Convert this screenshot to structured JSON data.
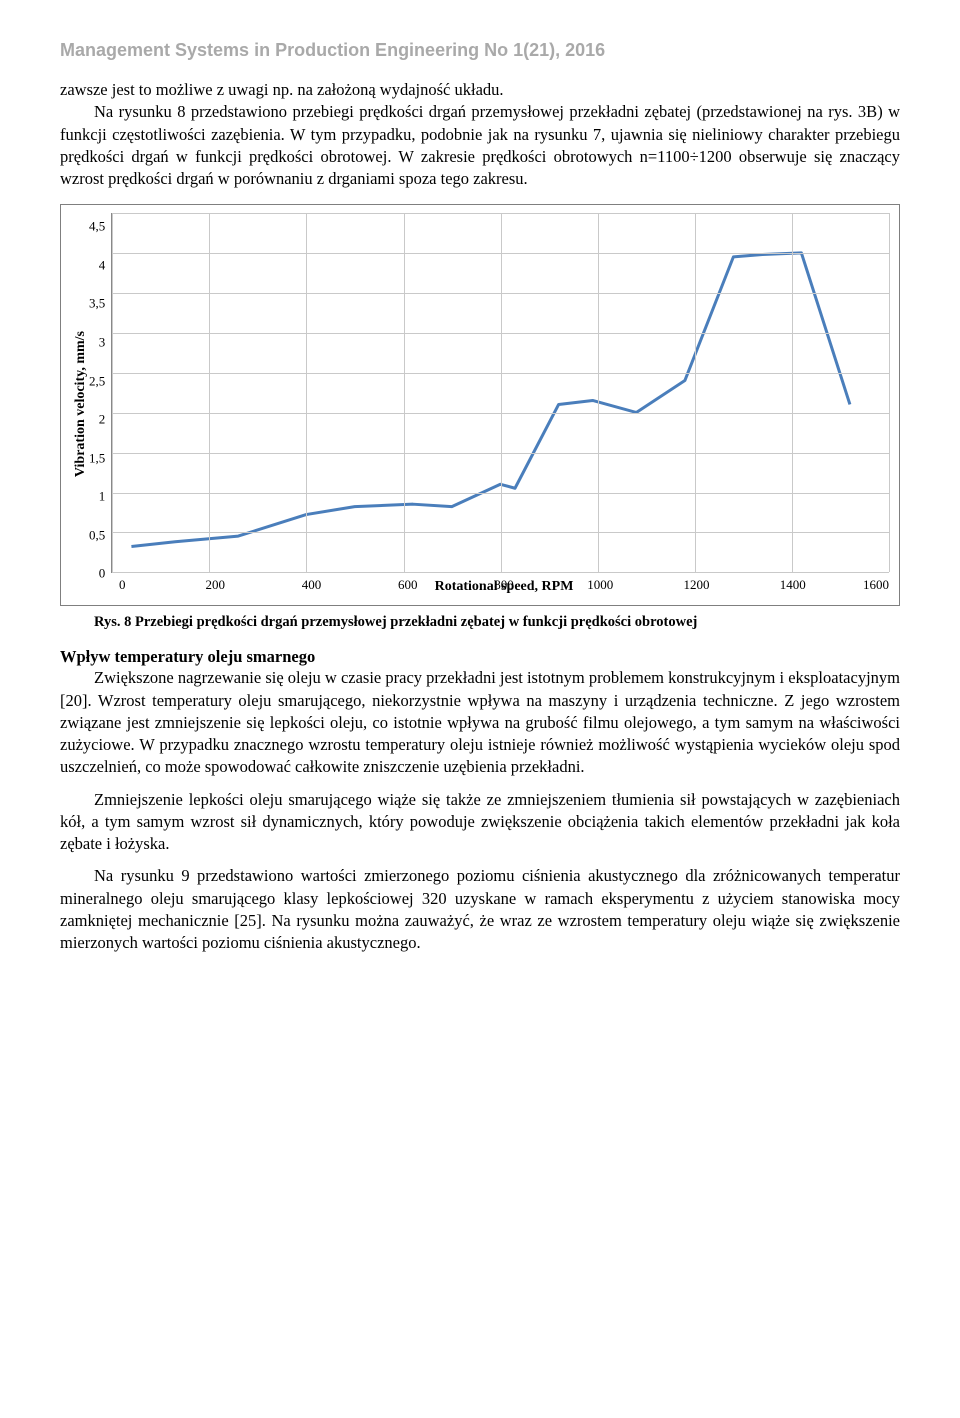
{
  "page": {
    "header": "Management Systems in Production Engineering No 1(21), 2016",
    "para1a": "zawsze jest to możliwe z uwagi np. na założoną wydajność układu.",
    "para1b": "Na rysunku 8 przedstawiono przebiegi prędkości drgań przemysłowej przekładni zębatej (przedstawionej na rys. 3B) w funkcji częstotliwości zazębienia. W tym przypadku, podobnie jak na rysunku 7, ujawnia się nieliniowy charakter przebiegu prędkości drgań w funkcji prędkości obrotowej. W zakresie prędkości obrotowych n=1100÷1200 obserwuje się znaczący wzrost prędkości drgań w porównaniu z drganiami spoza tego zakresu.",
    "caption": "Rys. 8 Przebiegi prędkości drgań przemysłowej przekładni zębatej w funkcji prędkości obrotowej",
    "section_title": "Wpływ temperatury oleju smarnego",
    "para2": "Zwiększone nagrzewanie się oleju w czasie pracy przekładni jest istotnym problemem konstrukcyjnym i eksploatacyjnym [20]. Wzrost temperatury oleju smarującego, niekorzystnie wpływa na maszyny i urządzenia techniczne. Z jego wzrostem związane jest zmniejszenie się lepkości oleju, co istotnie wpływa na grubość filmu olejowego, a tym samym na właściwości zużyciowe. W przypadku znacznego wzrostu temperatury oleju istnieje również możliwość wystąpienia wycieków oleju spod uszczelnień, co może spowodować całkowite zniszczenie uzębienia przekładni.",
    "para3": "Zmniejszenie lepkości oleju smarującego wiąże się także ze zmniejszeniem tłumienia sił powstających w zazębieniach kół, a tym samym wzrost sił dynamicznych, który powoduje zwiększenie obciążenia takich elementów przekładni jak koła zębate i łożyska.",
    "para4": "Na rysunku 9 przedstawiono wartości zmierzonego poziomu ciśnienia akustycznego dla zróżnicowanych temperatur mineralnego oleju smarującego klasy lepkościowej 320 uzyskane w ramach eksperymentu z użyciem stanowiska mocy zamkniętej mechanicznie [25]. Na rysunku można zauważyć, że wraz ze wzrostem temperatury oleju wiąże się zwiększenie mierzonych wartości poziomu ciśnienia akustycznego."
  },
  "chart": {
    "type": "line",
    "ylabel": "Vibration velocity, mm/s",
    "xlabel": "Rotational speed, RPM",
    "ylim": [
      0,
      4.5
    ],
    "ytick_step": 0.5,
    "yticks": [
      "4,5",
      "4",
      "3,5",
      "3",
      "2,5",
      "2",
      "1,5",
      "1",
      "0,5",
      "0"
    ],
    "xlim": [
      0,
      1600
    ],
    "xtick_step": 200,
    "xticks": [
      "0",
      "200",
      "400",
      "600",
      "800",
      "1000",
      "1200",
      "1400",
      "1600"
    ],
    "line_color": "#4a7ebb",
    "line_width": 3,
    "grid_color": "#c9c9c9",
    "border_color": "#888888",
    "background_color": "#ffffff",
    "series": {
      "x": [
        40,
        130,
        260,
        400,
        500,
        620,
        700,
        800,
        830,
        920,
        990,
        1080,
        1180,
        1280,
        1340,
        1420,
        1520
      ],
      "y": [
        0.32,
        0.38,
        0.45,
        0.72,
        0.82,
        0.85,
        0.82,
        1.1,
        1.05,
        2.1,
        2.15,
        2.0,
        2.4,
        3.95,
        3.98,
        4.0,
        2.1
      ]
    }
  }
}
